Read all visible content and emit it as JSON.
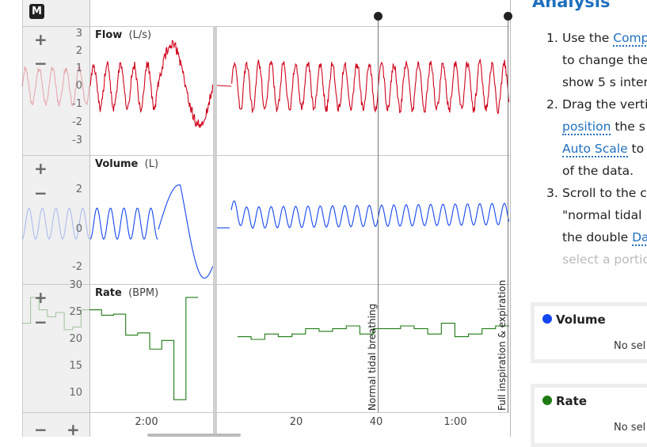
{
  "toolbar": {
    "mode_badge": "M"
  },
  "panels": [
    {
      "name": "Flow",
      "unit": "(L/s)",
      "color": "#d0021b",
      "ticks": [
        "3",
        "2",
        "1",
        "0",
        "-1",
        "-2",
        "-3"
      ]
    },
    {
      "name": "Volume",
      "unit": "(L)",
      "color": "#1446f0",
      "ticks": [
        "2",
        "0",
        "-2"
      ]
    },
    {
      "name": "Rate",
      "unit": "(BPM)",
      "color": "#1e7a12",
      "ticks": [
        "30",
        "25",
        "20",
        "15",
        "10"
      ]
    }
  ],
  "x_axis": {
    "ticks": [
      "2:00",
      "20",
      "40",
      "1:00"
    ]
  },
  "markers": [
    {
      "label": "Normal tidal breathing"
    },
    {
      "label": "Full inspiration & expiration"
    }
  ],
  "rate_series": {
    "left": [
      25.5,
      24.5,
      24.7,
      20.8,
      21.2,
      18.2,
      19.8,
      8.8,
      27.8
    ],
    "right": [
      20.5,
      20,
      21,
      20.5,
      21,
      22,
      21.5,
      22,
      22.5,
      21,
      22,
      22,
      22.5,
      22,
      21,
      23,
      20.5,
      21,
      22,
      22.5
    ]
  },
  "analysis": {
    "title": "Analysis",
    "steps": [
      {
        "n": "1.",
        "lines": [
          [
            "Use the ",
            {
              "link": "Comp"
            }
          ],
          [
            "to change the"
          ],
          [
            "show 5 s inter"
          ]
        ]
      },
      {
        "n": "2.",
        "lines": [
          [
            "Drag the verti"
          ],
          [
            {
              "link": "position"
            },
            " the s"
          ],
          [
            {
              "link": "Auto Scale"
            },
            " to"
          ],
          [
            "of the data."
          ]
        ]
      },
      {
        "n": "3.",
        "lines": [
          [
            "Scroll to the c"
          ],
          [
            "\"normal tidal"
          ],
          [
            "the double ",
            {
              "link": "Da"
            }
          ],
          [
            {
              "fade": "select a portio"
            }
          ]
        ]
      }
    ]
  },
  "cards": [
    {
      "title": "Volume",
      "color": "#1446f0",
      "status": "No sel"
    },
    {
      "title": "Rate",
      "color": "#1e7a12",
      "status": "No sel"
    }
  ]
}
